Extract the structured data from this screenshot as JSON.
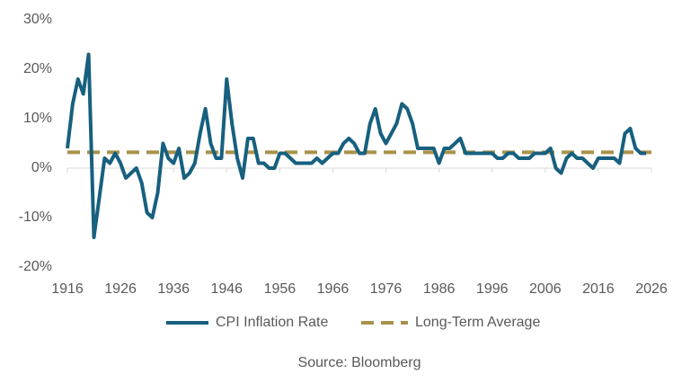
{
  "chart_data": {
    "type": "line",
    "x": [
      1916,
      1917,
      1918,
      1919,
      1920,
      1921,
      1922,
      1923,
      1924,
      1925,
      1926,
      1927,
      1928,
      1929,
      1930,
      1931,
      1932,
      1933,
      1934,
      1935,
      1936,
      1937,
      1938,
      1939,
      1940,
      1941,
      1942,
      1943,
      1944,
      1945,
      1946,
      1947,
      1948,
      1949,
      1950,
      1951,
      1952,
      1953,
      1954,
      1955,
      1956,
      1957,
      1958,
      1959,
      1960,
      1961,
      1962,
      1963,
      1964,
      1965,
      1966,
      1967,
      1968,
      1969,
      1970,
      1971,
      1972,
      1973,
      1974,
      1975,
      1976,
      1977,
      1978,
      1979,
      1980,
      1981,
      1982,
      1983,
      1984,
      1985,
      1986,
      1987,
      1988,
      1989,
      1990,
      1991,
      1992,
      1993,
      1994,
      1995,
      1996,
      1997,
      1998,
      1999,
      2000,
      2001,
      2002,
      2003,
      2004,
      2005,
      2006,
      2007,
      2008,
      2009,
      2010,
      2011,
      2012,
      2013,
      2014,
      2015,
      2016,
      2017,
      2018,
      2019,
      2020,
      2021,
      2022,
      2023,
      2024,
      2025
    ],
    "series": [
      {
        "name": "CPI Inflation Rate",
        "color": "#17607f",
        "values": [
          4,
          13,
          18,
          15,
          23,
          -14,
          -6,
          2,
          1,
          3,
          1,
          -2,
          -1,
          0,
          -3,
          -9,
          -10,
          -5,
          5,
          2,
          1,
          4,
          -2,
          -1,
          1,
          7,
          12,
          5,
          2,
          2,
          18,
          9,
          2,
          -2,
          6,
          6,
          1,
          1,
          0,
          0,
          3,
          3,
          2,
          1,
          1,
          1,
          1,
          2,
          1,
          2,
          3,
          3,
          5,
          6,
          5,
          3,
          3,
          9,
          12,
          7,
          5,
          7,
          9,
          13,
          12,
          9,
          4,
          4,
          4,
          4,
          1,
          4,
          4,
          5,
          6,
          3,
          3,
          3,
          3,
          3,
          3,
          2,
          2,
          3,
          3,
          2,
          2,
          2,
          3,
          3,
          3,
          4,
          0,
          -1,
          2,
          3,
          2,
          2,
          1,
          0,
          2,
          2,
          2,
          2,
          1,
          7,
          8,
          4,
          3,
          3
        ]
      }
    ],
    "average_line": {
      "name": "Long-Term Average",
      "color": "#a8924a",
      "value": 3.2
    },
    "xlim": [
      1916,
      2026
    ],
    "xticks": [
      1916,
      1926,
      1936,
      1946,
      1956,
      1966,
      1976,
      1986,
      1996,
      2006,
      2016,
      2026
    ],
    "ylim": [
      -20,
      30
    ],
    "yticks": [
      {
        "value": -20,
        "label": "-20%"
      },
      {
        "value": -10,
        "label": "-10%"
      },
      {
        "value": 0,
        "label": "0%"
      },
      {
        "value": 10,
        "label": "10%"
      },
      {
        "value": 20,
        "label": "20%"
      },
      {
        "value": 30,
        "label": "30%"
      }
    ],
    "source": "Source: Bloomberg"
  }
}
